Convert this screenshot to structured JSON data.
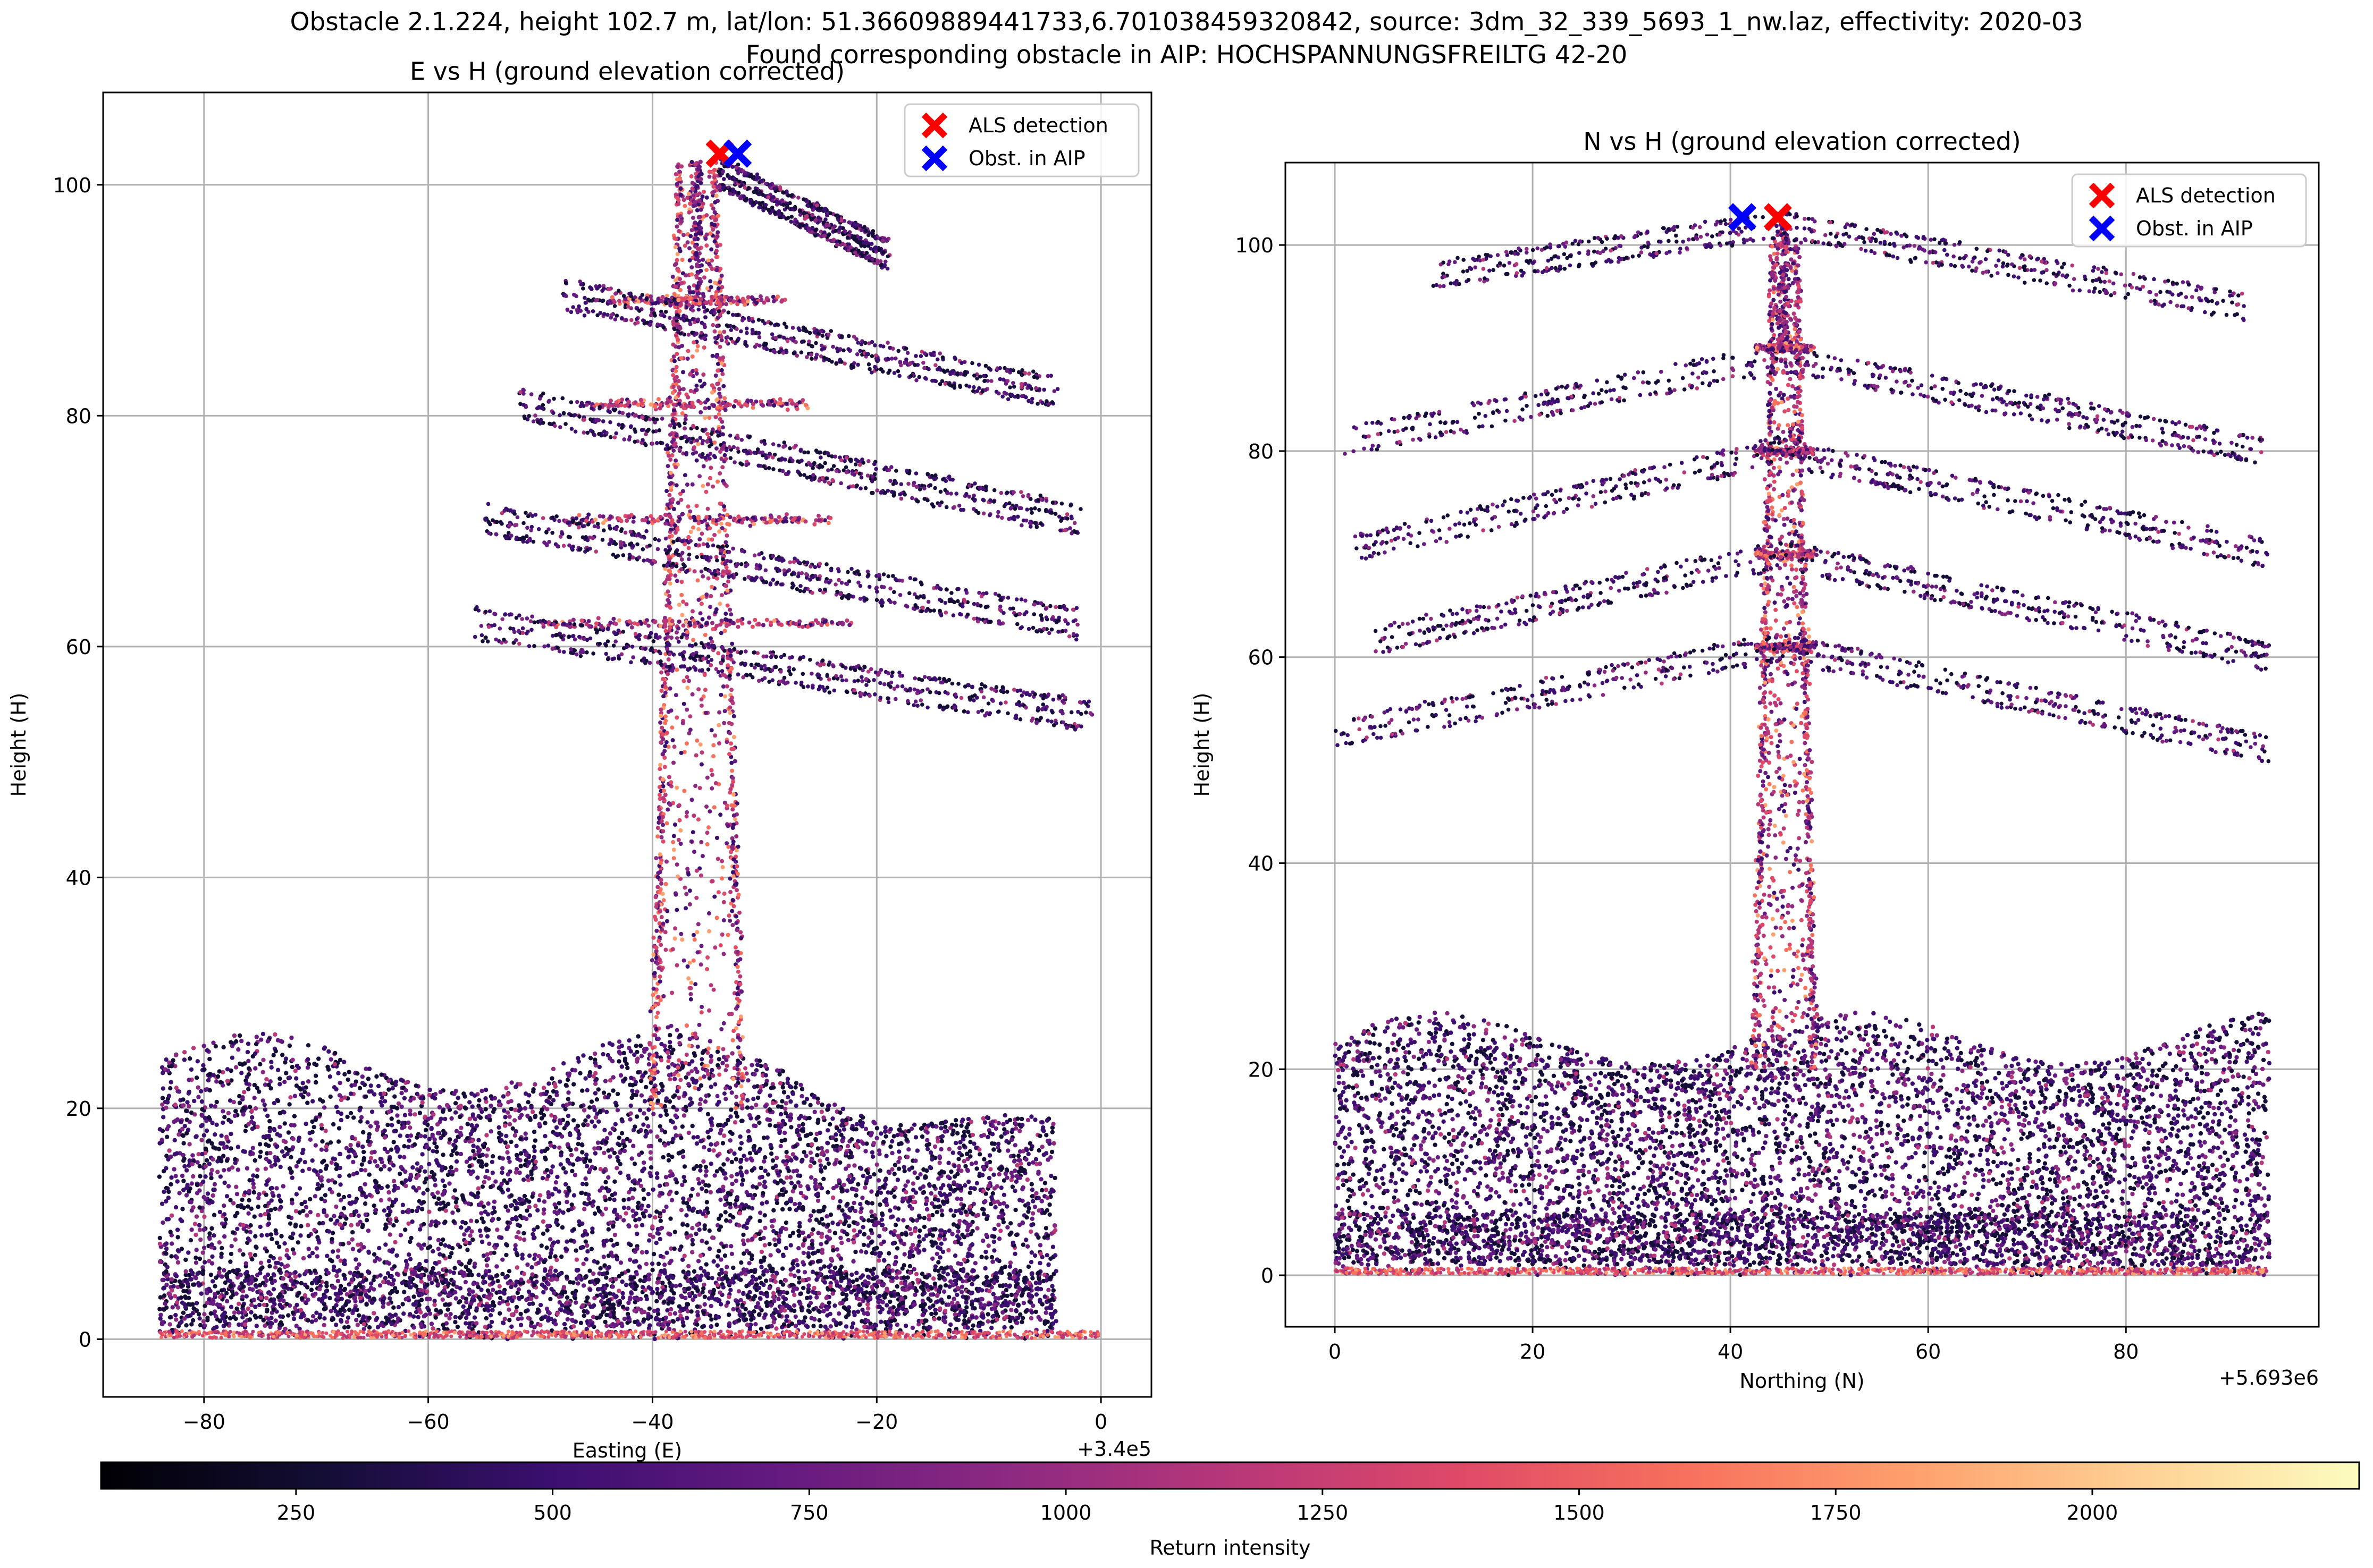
{
  "figure": {
    "suptitle_line1": "Obstacle 2.1.224, height 102.7 m, lat/lon: 51.36609889441733,6.701038459320842, source: 3dm_32_339_5693_1_nw.laz, effectivity: 2020-03",
    "suptitle_line2": "Found corresponding obstacle in AIP: HOCHSPANNUNGSFREILTG 42-20"
  },
  "colors": {
    "als_marker": "#ff0000",
    "aip_marker": "#0000ff",
    "grid": "#b0b0b0",
    "colormap": "magma"
  },
  "colorbar": {
    "label": "Return intensity",
    "ticks": [
      "250",
      "500",
      "750",
      "1000",
      "1250",
      "1500",
      "1750",
      "2000"
    ],
    "tick_values": [
      250,
      500,
      750,
      1000,
      1250,
      1500,
      1750,
      2000
    ],
    "range": [
      60,
      2260
    ]
  },
  "chart_data": [
    {
      "type": "scatter",
      "title": "E vs H (ground elevation corrected)",
      "xlabel": "Easting (E)",
      "ylabel": "Height (H)",
      "x_offset_label": "+3.4e5",
      "xlim": [
        -89,
        4.5
      ],
      "ylim": [
        -5,
        108
      ],
      "xticks": [
        -80,
        -60,
        -40,
        -20,
        0
      ],
      "xtick_labels": [
        "−80",
        "−60",
        "−40",
        "−20",
        "0"
      ],
      "yticks": [
        0,
        20,
        40,
        60,
        80,
        100
      ],
      "ytick_labels": [
        "0",
        "20",
        "40",
        "60",
        "80",
        "100"
      ],
      "grid": true,
      "legend_position": "top-right",
      "legend": [
        "ALS detection",
        "Obst. in AIP"
      ],
      "markers": {
        "als_detection": {
          "x": -34.0,
          "y": 102.7
        },
        "obst_in_aip": {
          "x": -32.4,
          "y": 102.7
        }
      },
      "point_cloud": {
        "description_free": true,
        "vegetation_band": {
          "x": [
            -84,
            -4
          ],
          "y": [
            0,
            28
          ]
        },
        "ground_line": {
          "x": [
            -84,
            0
          ],
          "y": 0
        },
        "tower": {
          "x": [
            -40,
            -32
          ],
          "top": 102
        },
        "crossarm_heights": [
          90,
          81,
          71,
          62
        ],
        "conductor_groups": [
          {
            "x0": -48,
            "y0": 90.5,
            "x1": -4,
            "y1": 82
          },
          {
            "x0": -52,
            "y0": 81,
            "x1": -2,
            "y1": 71
          },
          {
            "x0": -55,
            "y0": 71,
            "x1": -2,
            "y1": 62
          },
          {
            "x0": -56,
            "y0": 62,
            "x1": -1,
            "y1": 54
          },
          {
            "x0": -34,
            "y0": 101,
            "x1": -19,
            "y1": 94
          }
        ]
      }
    },
    {
      "type": "scatter",
      "title": "N vs H (ground elevation corrected)",
      "xlabel": "Northing (N)",
      "ylabel": "Height (H)",
      "x_offset_label": "+5.693e6",
      "xlim": [
        -5,
        99.5
      ],
      "ylim": [
        -5,
        108
      ],
      "xticks": [
        0,
        20,
        40,
        60,
        80
      ],
      "xtick_labels": [
        "0",
        "20",
        "40",
        "60",
        "80"
      ],
      "yticks": [
        0,
        20,
        40,
        60,
        80,
        100
      ],
      "ytick_labels": [
        "0",
        "20",
        "40",
        "60",
        "80",
        "100"
      ],
      "grid": true,
      "legend_position": "top-right",
      "legend": [
        "ALS detection",
        "Obst. in AIP"
      ],
      "markers": {
        "als_detection": {
          "x": 44.8,
          "y": 102.7
        },
        "obst_in_aip": {
          "x": 41.2,
          "y": 102.7
        }
      },
      "point_cloud": {
        "vegetation_band": {
          "x": [
            0,
            94.5
          ],
          "y": [
            0,
            27
          ]
        },
        "ground_line": {
          "x": [
            0,
            94.5
          ],
          "y": 0
        },
        "tower": {
          "x": [
            42.5,
            48.5
          ],
          "top": 101
        },
        "crossarm_heights": [
          90,
          80,
          70,
          61
        ],
        "conductor_groups": [
          {
            "x0": 1,
            "y0": 81,
            "x1": 45,
            "y1": 89,
            "x2": 94,
            "y2": 80
          },
          {
            "x0": 2,
            "y0": 70.5,
            "x1": 45,
            "y1": 80,
            "x2": 94.5,
            "y2": 70
          },
          {
            "x0": 4,
            "y0": 61.5,
            "x1": 45,
            "y1": 70,
            "x2": 94.5,
            "y2": 60
          },
          {
            "x0": 0,
            "y0": 52.5,
            "x1": 45,
            "y1": 61,
            "x2": 94.5,
            "y2": 51
          },
          {
            "x0": 10,
            "y0": 97,
            "x1": 45,
            "y1": 102,
            "x2": 92,
            "y2": 94
          }
        ]
      }
    }
  ]
}
